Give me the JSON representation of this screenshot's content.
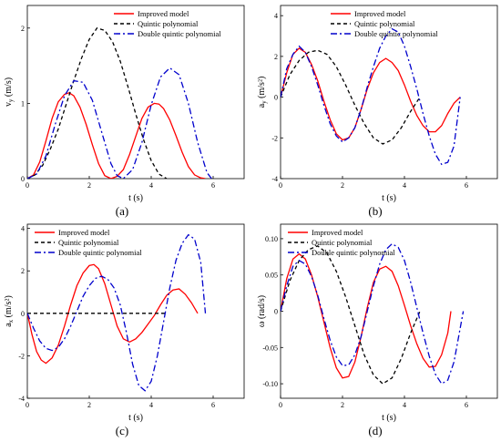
{
  "chart_data": [
    {
      "type": "line",
      "panel_label": "(a)",
      "xlabel": "t (s)",
      "ylabel": "v_y (m/s)",
      "ylabel_main": "v",
      "ylabel_sub": "y",
      "ylabel_tail": " (m/s)",
      "xlim": [
        0,
        7
      ],
      "ylim": [
        0,
        2.3
      ],
      "xticks": [
        0,
        2,
        4,
        6
      ],
      "xtick_labels": [
        "0",
        "2",
        "4",
        "6"
      ],
      "yticks": [
        0,
        1,
        2
      ],
      "ytick_labels": [
        "0",
        "1",
        "2"
      ],
      "legend": "top-right",
      "series": [
        {
          "name": "Improved model",
          "color": "#ff0000",
          "dash": "solid",
          "x": [
            0,
            0.2,
            0.4,
            0.6,
            0.8,
            1.0,
            1.2,
            1.35,
            1.5,
            1.7,
            1.9,
            2.1,
            2.3,
            2.5,
            2.7,
            2.9,
            3.1,
            3.3,
            3.5,
            3.7,
            3.9,
            4.1,
            4.25,
            4.4,
            4.6,
            4.8,
            5.0,
            5.2,
            5.4,
            5.6,
            5.75
          ],
          "y": [
            0,
            0.05,
            0.22,
            0.5,
            0.8,
            1.02,
            1.12,
            1.14,
            1.1,
            0.95,
            0.72,
            0.45,
            0.2,
            0.04,
            0,
            0.03,
            0.12,
            0.32,
            0.56,
            0.8,
            0.95,
            1.0,
            0.99,
            0.93,
            0.78,
            0.57,
            0.35,
            0.16,
            0.05,
            0.01,
            0
          ]
        },
        {
          "name": "Quintic polynomial",
          "color": "#000000",
          "dash": "4,3",
          "x": [
            0,
            0.25,
            0.5,
            0.75,
            1.0,
            1.25,
            1.5,
            1.75,
            2.0,
            2.25,
            2.5,
            2.75,
            3.0,
            3.25,
            3.5,
            3.75,
            4.0,
            4.25,
            4.5
          ],
          "y": [
            0,
            0.05,
            0.18,
            0.4,
            0.66,
            0.98,
            1.3,
            1.6,
            1.85,
            2.0,
            1.97,
            1.82,
            1.56,
            1.22,
            0.86,
            0.52,
            0.24,
            0.06,
            0
          ]
        },
        {
          "name": "Double quintic polynomial",
          "color": "#0000cc",
          "dash": "7,3,2,3",
          "x": [
            0,
            0.3,
            0.6,
            0.9,
            1.2,
            1.5,
            1.8,
            2.1,
            2.4,
            2.7,
            2.9,
            3.1,
            3.4,
            3.7,
            4.0,
            4.3,
            4.6,
            4.9,
            5.2,
            5.5,
            5.8,
            5.95
          ],
          "y": [
            0,
            0.06,
            0.3,
            0.72,
            1.1,
            1.3,
            1.28,
            1.04,
            0.62,
            0.2,
            0.04,
            0,
            0.12,
            0.48,
            0.98,
            1.35,
            1.47,
            1.38,
            1.0,
            0.48,
            0.08,
            0
          ]
        }
      ]
    },
    {
      "type": "line",
      "panel_label": "(b)",
      "xlabel": "t (s)",
      "ylabel": "a_y (m/s²)",
      "ylabel_main": "a",
      "ylabel_sub": "y",
      "ylabel_tail": " (m/s²)",
      "xlim": [
        0,
        7
      ],
      "ylim": [
        -4,
        4.5
      ],
      "xticks": [
        0,
        2,
        4,
        6
      ],
      "xtick_labels": [
        "0",
        "2",
        "4",
        "6"
      ],
      "yticks": [
        -4,
        -2,
        0,
        2,
        4
      ],
      "ytick_labels": [
        "-4",
        "-2",
        "0",
        "2",
        "4"
      ],
      "legend": "top-right",
      "series": [
        {
          "name": "Improved model",
          "color": "#ff0000",
          "dash": "solid",
          "x": [
            0,
            0.2,
            0.4,
            0.6,
            0.8,
            1.0,
            1.2,
            1.4,
            1.6,
            1.8,
            2.0,
            2.2,
            2.4,
            2.6,
            2.8,
            3.0,
            3.2,
            3.4,
            3.6,
            3.8,
            4.0,
            4.2,
            4.4,
            4.6,
            4.8,
            5.0,
            5.2,
            5.4,
            5.6,
            5.8
          ],
          "y": [
            0,
            1.2,
            2.1,
            2.4,
            2.2,
            1.6,
            0.8,
            -0.2,
            -1.1,
            -1.8,
            -2.1,
            -2.0,
            -1.5,
            -0.6,
            0.4,
            1.2,
            1.7,
            1.9,
            1.7,
            1.3,
            0.6,
            -0.2,
            -0.9,
            -1.4,
            -1.7,
            -1.7,
            -1.4,
            -0.8,
            -0.3,
            0
          ]
        },
        {
          "name": "Quintic polynomial",
          "color": "#000000",
          "dash": "4,3",
          "x": [
            0,
            0.3,
            0.6,
            0.9,
            1.2,
            1.5,
            1.8,
            2.1,
            2.4,
            2.7,
            3.0,
            3.3,
            3.6,
            3.9,
            4.2,
            4.5
          ],
          "y": [
            0,
            1.1,
            1.8,
            2.2,
            2.3,
            2.1,
            1.5,
            0.6,
            -0.4,
            -1.3,
            -2.0,
            -2.3,
            -2.1,
            -1.5,
            -0.7,
            0
          ]
        },
        {
          "name": "Double quintic polynomial",
          "color": "#0000cc",
          "dash": "7,3,2,3",
          "x": [
            0,
            0.2,
            0.4,
            0.6,
            0.8,
            1.0,
            1.2,
            1.4,
            1.6,
            1.8,
            2.0,
            2.2,
            2.4,
            2.6,
            2.8,
            3.0,
            3.2,
            3.4,
            3.6,
            3.8,
            4.0,
            4.2,
            4.4,
            4.6,
            4.8,
            5.0,
            5.2,
            5.4,
            5.6,
            5.8
          ],
          "y": [
            0,
            1.4,
            2.1,
            2.5,
            2.2,
            1.5,
            0.6,
            -0.4,
            -1.3,
            -1.9,
            -2.2,
            -2.0,
            -1.5,
            -0.6,
            0.5,
            1.5,
            2.4,
            3.0,
            3.35,
            3.2,
            2.5,
            1.5,
            0.4,
            -0.8,
            -1.9,
            -2.8,
            -3.3,
            -3.2,
            -2.4,
            0
          ]
        }
      ]
    },
    {
      "type": "line",
      "panel_label": "(c)",
      "xlabel": "t (s)",
      "ylabel": "a_x (m/s²)",
      "ylabel_main": "a",
      "ylabel_sub": "x",
      "ylabel_tail": " (m/s²)",
      "xlim": [
        0,
        7
      ],
      "ylim": [
        -4,
        4.2
      ],
      "xticks": [
        0,
        2,
        4,
        6
      ],
      "xtick_labels": [
        "0",
        "2",
        "4",
        "6"
      ],
      "yticks": [
        -4,
        -2,
        0,
        2,
        4
      ],
      "ytick_labels": [
        "-4",
        "-2",
        "0",
        "2",
        "4"
      ],
      "legend": "top-left",
      "series": [
        {
          "name": "Improved model",
          "color": "#ff0000",
          "dash": "solid",
          "x": [
            0,
            0.15,
            0.3,
            0.45,
            0.6,
            0.8,
            1.0,
            1.2,
            1.4,
            1.6,
            1.8,
            2.0,
            2.15,
            2.3,
            2.5,
            2.7,
            2.9,
            3.1,
            3.3,
            3.5,
            3.7,
            3.9,
            4.1,
            4.3,
            4.5,
            4.7,
            4.9,
            5.1,
            5.3,
            5.5
          ],
          "y": [
            0,
            -1.0,
            -1.8,
            -2.2,
            -2.35,
            -2.1,
            -1.5,
            -0.6,
            0.4,
            1.3,
            1.9,
            2.25,
            2.3,
            2.1,
            1.4,
            0.4,
            -0.6,
            -1.2,
            -1.35,
            -1.2,
            -0.9,
            -0.5,
            -0.1,
            0.4,
            0.85,
            1.1,
            1.15,
            0.9,
            0.5,
            0
          ]
        },
        {
          "name": "Quintic polynomial",
          "color": "#000000",
          "dash": "4,3",
          "x": [
            0,
            4.5
          ],
          "y": [
            0,
            0
          ]
        },
        {
          "name": "Double quintic polynomial",
          "color": "#0000cc",
          "dash": "7,3,2,3",
          "x": [
            0,
            0.2,
            0.4,
            0.6,
            0.8,
            1.0,
            1.2,
            1.4,
            1.6,
            1.8,
            2.0,
            2.2,
            2.4,
            2.6,
            2.8,
            3.0,
            3.2,
            3.4,
            3.6,
            3.8,
            4.0,
            4.2,
            4.4,
            4.6,
            4.8,
            5.0,
            5.2,
            5.4,
            5.6,
            5.75
          ],
          "y": [
            0,
            -0.7,
            -1.3,
            -1.65,
            -1.75,
            -1.6,
            -1.2,
            -0.6,
            0.1,
            0.8,
            1.3,
            1.65,
            1.75,
            1.6,
            1.2,
            0.4,
            -0.9,
            -2.4,
            -3.4,
            -3.65,
            -3.2,
            -2.0,
            -0.4,
            1.2,
            2.5,
            3.3,
            3.7,
            3.5,
            2.4,
            0
          ]
        }
      ]
    },
    {
      "type": "line",
      "panel_label": "(d)",
      "xlabel": "t (s)",
      "ylabel": "ω (rad/s)",
      "ylabel_main": "ω",
      "ylabel_sub": "",
      "ylabel_tail": " (rad/s)",
      "xlim": [
        0,
        7
      ],
      "ylim": [
        -0.12,
        0.12
      ],
      "xticks": [
        0,
        2,
        4,
        6
      ],
      "xtick_labels": [
        "0",
        "2",
        "4",
        "6"
      ],
      "yticks": [
        -0.1,
        -0.05,
        0,
        0.05,
        0.1
      ],
      "ytick_labels": [
        "-0.10",
        "-0.05",
        "0",
        "0.05",
        "0.10"
      ],
      "legend": "top-left",
      "series": [
        {
          "name": "Improved model",
          "color": "#ff0000",
          "dash": "solid",
          "x": [
            0,
            0.2,
            0.4,
            0.6,
            0.8,
            1.0,
            1.2,
            1.4,
            1.6,
            1.8,
            2.0,
            2.2,
            2.4,
            2.6,
            2.8,
            3.0,
            3.2,
            3.4,
            3.6,
            3.8,
            4.0,
            4.2,
            4.4,
            4.6,
            4.8,
            5.0,
            5.2,
            5.4,
            5.5
          ],
          "y": [
            0,
            0.045,
            0.072,
            0.079,
            0.072,
            0.05,
            0.02,
            -0.015,
            -0.05,
            -0.078,
            -0.092,
            -0.09,
            -0.07,
            -0.035,
            0.005,
            0.04,
            0.058,
            0.062,
            0.055,
            0.035,
            0.008,
            -0.02,
            -0.045,
            -0.065,
            -0.077,
            -0.076,
            -0.06,
            -0.03,
            0
          ]
        },
        {
          "name": "Quintic polynomial",
          "color": "#000000",
          "dash": "4,3",
          "x": [
            0,
            0.3,
            0.6,
            0.9,
            1.2,
            1.5,
            1.8,
            2.1,
            2.4,
            2.7,
            3.0,
            3.3,
            3.6,
            3.9,
            4.2,
            4.5
          ],
          "y": [
            0,
            0.042,
            0.07,
            0.085,
            0.09,
            0.08,
            0.055,
            0.02,
            -0.02,
            -0.06,
            -0.088,
            -0.1,
            -0.092,
            -0.065,
            -0.03,
            0
          ]
        },
        {
          "name": "Double quintic polynomial",
          "color": "#0000cc",
          "dash": "7,3,2,3",
          "x": [
            0,
            0.2,
            0.4,
            0.6,
            0.8,
            1.0,
            1.2,
            1.4,
            1.6,
            1.8,
            2.0,
            2.2,
            2.4,
            2.6,
            2.8,
            3.0,
            3.2,
            3.4,
            3.6,
            3.8,
            4.0,
            4.2,
            4.4,
            4.6,
            4.8,
            5.0,
            5.2,
            5.4,
            5.6,
            5.9
          ],
          "y": [
            0,
            0.035,
            0.062,
            0.07,
            0.065,
            0.048,
            0.022,
            -0.01,
            -0.04,
            -0.063,
            -0.075,
            -0.074,
            -0.06,
            -0.035,
            0.0,
            0.035,
            0.065,
            0.085,
            0.093,
            0.088,
            0.07,
            0.04,
            0.005,
            -0.03,
            -0.062,
            -0.087,
            -0.1,
            -0.095,
            -0.07,
            0
          ]
        }
      ]
    }
  ]
}
